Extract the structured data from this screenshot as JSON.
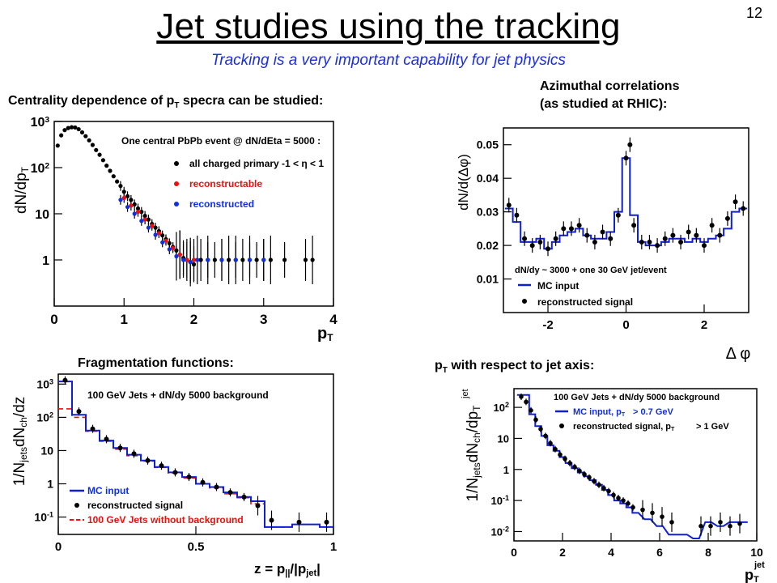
{
  "slide": {
    "title": "Jet studies using the tracking",
    "subtitle": "Tracking is a very important capability for jet physics",
    "page_number": "12"
  },
  "captions": {
    "centrality": "Centrality dependence of p",
    "centrality_sub": "T",
    "centrality_tail": " specra can be studied:",
    "azimuthal_line1": "Azimuthal correlations",
    "azimuthal_line2": "(as studied at RHIC):",
    "fragmentation": "Fragmentation functions:",
    "jet_axis": "p",
    "jet_axis_sub": "T",
    "jet_axis_tail": " with respect to jet axis:"
  },
  "chart_data": [
    {
      "id": "pt-spectra",
      "type": "scatter",
      "title": "",
      "ylabel": "dN/dp",
      "ylabel_sub": "T",
      "xlabel": "p",
      "xlabel_sub": "T",
      "xlim": [
        0,
        4
      ],
      "ylim": [
        0.1,
        1000
      ],
      "y_scale": "log",
      "x_ticks": [
        "0",
        "1",
        "2",
        "3",
        "4"
      ],
      "y_ticks": [
        {
          "v": 1000,
          "base": "10",
          "exp": "3"
        },
        {
          "v": 100,
          "base": "10",
          "exp": "2"
        },
        {
          "v": 10,
          "base": "10",
          "exp": ""
        },
        {
          "v": 1,
          "base": "1",
          "exp": ""
        }
      ],
      "legend_header": "One central PbPb event @ dN/dEta = 5000 :",
      "legend_position": "top-right",
      "series": [
        {
          "name": "all charged primary -1 < η < 1",
          "color": "#000000",
          "x": [
            0.05,
            0.1,
            0.15,
            0.2,
            0.25,
            0.3,
            0.35,
            0.4,
            0.45,
            0.5,
            0.55,
            0.6,
            0.65,
            0.7,
            0.75,
            0.8,
            0.85,
            0.9,
            0.95,
            1.0,
            1.05,
            1.1,
            1.15,
            1.2,
            1.25,
            1.3,
            1.35,
            1.4,
            1.45,
            1.5,
            1.55,
            1.6,
            1.65,
            1.7,
            1.75,
            1.8,
            1.85,
            1.9,
            1.95,
            2.0,
            2.1,
            2.2,
            2.3,
            2.4,
            2.5,
            2.6,
            2.7,
            2.8,
            2.9,
            3.0,
            3.1,
            3.3,
            3.6,
            3.7
          ],
          "y": [
            300,
            500,
            650,
            720,
            750,
            740,
            680,
            580,
            480,
            390,
            310,
            240,
            190,
            145,
            110,
            85,
            65,
            50,
            40,
            30,
            24,
            20,
            16,
            13,
            11,
            9,
            7.5,
            6,
            5,
            4.2,
            3.4,
            2.8,
            2.3,
            1.9,
            1.6,
            1.3,
            1.1,
            1.0,
            0.9,
            0.8,
            1,
            1,
            1,
            1,
            1,
            1,
            1,
            1,
            1,
            1,
            1,
            1,
            1,
            1
          ]
        },
        {
          "name": "reconstructable",
          "color": "#e81010",
          "x": [
            1.0,
            1.1,
            1.2,
            1.3,
            1.4,
            1.5,
            1.6,
            1.7,
            1.8,
            1.9,
            2.0
          ],
          "y": [
            22,
            15,
            11,
            7.5,
            5.5,
            3.8,
            2.6,
            1.8,
            1.3,
            1.0,
            1.0
          ]
        },
        {
          "name": "reconstructed",
          "color": "#1030e0",
          "x": [
            0.95,
            1.05,
            1.15,
            1.25,
            1.35,
            1.45,
            1.55,
            1.65,
            1.75,
            1.85,
            1.95,
            2.05,
            2.2,
            2.4,
            2.6,
            2.8,
            3.0
          ],
          "y": [
            20,
            14,
            10,
            7,
            5,
            3.5,
            2.4,
            1.7,
            1.2,
            1.0,
            0.9,
            1,
            1,
            1,
            1,
            1,
            1
          ]
        }
      ]
    },
    {
      "id": "azimuthal",
      "type": "line",
      "title": "",
      "ylabel": "dN/d(Δφ)",
      "xlabel": "Δ φ",
      "xlim": [
        -3.14,
        3.14
      ],
      "ylim": [
        0,
        0.055
      ],
      "x_ticks": [
        "-2",
        "0",
        "2"
      ],
      "y_ticks": [
        "0.01",
        "0.02",
        "0.03",
        "0.04",
        "0.05"
      ],
      "legend_header": "dN/dy ~ 3000 + one 30 GeV jet/event",
      "legend_position": "bottom-left",
      "series": [
        {
          "name": "MC input",
          "color": "#1020d0",
          "x": [
            -3.0,
            -2.8,
            -2.6,
            -2.4,
            -2.2,
            -2.0,
            -1.8,
            -1.6,
            -1.4,
            -1.2,
            -1.0,
            -0.8,
            -0.6,
            -0.4,
            -0.2,
            0.0,
            0.2,
            0.4,
            0.6,
            0.8,
            1.0,
            1.2,
            1.4,
            1.6,
            1.8,
            2.0,
            2.2,
            2.4,
            2.6,
            2.8,
            3.0
          ],
          "y": [
            0.031,
            0.027,
            0.021,
            0.021,
            0.022,
            0.019,
            0.021,
            0.023,
            0.024,
            0.025,
            0.023,
            0.022,
            0.022,
            0.024,
            0.03,
            0.046,
            0.029,
            0.021,
            0.02,
            0.02,
            0.021,
            0.022,
            0.022,
            0.021,
            0.022,
            0.021,
            0.022,
            0.023,
            0.025,
            0.03,
            0.031
          ]
        },
        {
          "name": "reconstructed signal",
          "color": "#000000",
          "x": [
            -3.0,
            -2.8,
            -2.6,
            -2.4,
            -2.2,
            -2.0,
            -1.8,
            -1.6,
            -1.4,
            -1.2,
            -1.0,
            -0.8,
            -0.6,
            -0.4,
            -0.2,
            0.0,
            0.1,
            0.2,
            0.4,
            0.6,
            0.8,
            1.0,
            1.2,
            1.4,
            1.6,
            1.8,
            2.0,
            2.2,
            2.4,
            2.6,
            2.8,
            3.0
          ],
          "y": [
            0.032,
            0.029,
            0.022,
            0.02,
            0.021,
            0.019,
            0.022,
            0.025,
            0.025,
            0.026,
            0.023,
            0.021,
            0.024,
            0.022,
            0.029,
            0.046,
            0.05,
            0.026,
            0.021,
            0.021,
            0.02,
            0.022,
            0.023,
            0.021,
            0.024,
            0.023,
            0.02,
            0.026,
            0.023,
            0.028,
            0.033,
            0.031
          ]
        }
      ]
    },
    {
      "id": "fragmentation",
      "type": "line",
      "title": "",
      "ylabel": "1/N",
      "ylabel_parts": [
        "1/N",
        "jets",
        "dN",
        "ch",
        "/dz"
      ],
      "xlabel": "z = p",
      "xlabel_parts": [
        "z = p",
        "||",
        "/|p",
        "jet",
        "|"
      ],
      "xlim": [
        0,
        1
      ],
      "ylim": [
        0.03,
        2000
      ],
      "y_scale": "log",
      "x_ticks": [
        "0",
        "0.5",
        "1"
      ],
      "y_ticks": [
        {
          "v": 1000,
          "base": "10",
          "exp": "3"
        },
        {
          "v": 100,
          "base": "10",
          "exp": "2"
        },
        {
          "v": 10,
          "base": "10",
          "exp": ""
        },
        {
          "v": 1,
          "base": "1",
          "exp": ""
        },
        {
          "v": 0.1,
          "base": "10",
          "exp": "-1"
        }
      ],
      "legend_header": "100 GeV Jets + dN/dy 5000 background",
      "legend_position": "bottom-left",
      "series": [
        {
          "name": "MC input",
          "color": "#1020d0",
          "x": [
            0.025,
            0.075,
            0.125,
            0.175,
            0.225,
            0.275,
            0.325,
            0.375,
            0.425,
            0.475,
            0.525,
            0.575,
            0.625,
            0.675,
            0.725,
            0.775,
            0.825,
            0.875,
            0.925,
            0.975
          ],
          "y": [
            1200,
            120,
            40,
            20,
            12,
            7.5,
            5,
            3.2,
            2.2,
            1.6,
            1.0,
            0.8,
            0.55,
            0.4,
            0.3,
            0.05,
            0.05,
            0.06,
            0.06,
            0.05
          ]
        },
        {
          "name": "reconstructed signal",
          "color": "#000000",
          "x": [
            0.025,
            0.075,
            0.125,
            0.175,
            0.225,
            0.275,
            0.325,
            0.375,
            0.425,
            0.475,
            0.525,
            0.575,
            0.625,
            0.675,
            0.725,
            0.775,
            0.875,
            0.975
          ],
          "y": [
            1300,
            150,
            45,
            22,
            12,
            8,
            5,
            3.5,
            2.2,
            1.6,
            1.1,
            0.8,
            0.55,
            0.4,
            0.22,
            0.08,
            0.07,
            0.07
          ]
        },
        {
          "name": "100 GeV Jets without background",
          "color": "#e81010",
          "dashed": true,
          "x": [
            0.025,
            0.075,
            0.125,
            0.175,
            0.225,
            0.275,
            0.325,
            0.375,
            0.425,
            0.475,
            0.525,
            0.575,
            0.625,
            0.675,
            0.725,
            0.775,
            0.825
          ],
          "y": [
            180,
            100,
            38,
            19,
            11,
            7,
            4.8,
            3.1,
            2.1,
            1.5,
            1.0,
            0.75,
            0.5,
            0.38,
            0.25,
            0.05,
            0.05
          ]
        }
      ]
    },
    {
      "id": "jet-axis",
      "type": "line",
      "title": "",
      "ylabel_parts": [
        "1/N",
        "jets",
        "dN",
        "ch",
        "/dp",
        "T",
        "jet"
      ],
      "ylabel": "1/N",
      "xlabel": "p",
      "xlabel_parts": [
        "p",
        "T",
        "jet"
      ],
      "xlim": [
        0,
        10
      ],
      "ylim": [
        0.005,
        400
      ],
      "y_scale": "log",
      "x_ticks": [
        "0",
        "2",
        "4",
        "6",
        "8",
        "10"
      ],
      "y_ticks": [
        {
          "v": 100,
          "base": "10",
          "exp": "2"
        },
        {
          "v": 10,
          "base": "10",
          "exp": ""
        },
        {
          "v": 1,
          "base": "1",
          "exp": ""
        },
        {
          "v": 0.1,
          "base": "10",
          "exp": "-1"
        },
        {
          "v": 0.01,
          "base": "10",
          "exp": "-2"
        }
      ],
      "legend_header": "100 GeV Jets + dN/dy 5000 background",
      "legend_position": "top-right",
      "series": [
        {
          "name": "MC input, p",
          "legend_tail": " > 0.7 GeV",
          "color": "#1020d0",
          "x": [
            0.25,
            0.5,
            0.75,
            1.0,
            1.25,
            1.5,
            1.75,
            2.0,
            2.25,
            2.5,
            2.75,
            3.0,
            3.25,
            3.5,
            3.75,
            4.0,
            4.25,
            4.5,
            4.75,
            5.0,
            5.5,
            6.0,
            6.5,
            7.0,
            7.5,
            8.0,
            8.5,
            9.0,
            9.5
          ],
          "y": [
            250,
            250,
            60,
            25,
            12,
            6,
            4,
            2.5,
            1.6,
            1.1,
            0.8,
            0.6,
            0.45,
            0.32,
            0.22,
            0.15,
            0.1,
            0.08,
            0.06,
            0.04,
            0.025,
            0.015,
            0.008,
            0.008,
            0.006,
            0.02,
            0.015,
            0.02,
            0.02
          ]
        },
        {
          "name": "reconstructed signal, p",
          "legend_tail": " > 1 GeV",
          "color": "#000000",
          "x": [
            0.3,
            0.5,
            0.7,
            0.9,
            1.1,
            1.3,
            1.5,
            1.7,
            1.9,
            2.1,
            2.3,
            2.5,
            2.7,
            2.9,
            3.1,
            3.3,
            3.5,
            3.7,
            3.9,
            4.1,
            4.3,
            4.5,
            4.7,
            4.9,
            5.3,
            5.7,
            6.1,
            6.5,
            7.7,
            8.1,
            8.5,
            8.9,
            9.3
          ],
          "y": [
            220,
            150,
            80,
            40,
            20,
            12,
            7,
            4.5,
            3,
            2.2,
            1.6,
            1.2,
            0.9,
            0.7,
            0.55,
            0.42,
            0.32,
            0.25,
            0.2,
            0.15,
            0.12,
            0.1,
            0.08,
            0.06,
            0.05,
            0.04,
            0.03,
            0.02,
            0.015,
            0.015,
            0.02,
            0.015,
            0.018
          ]
        }
      ]
    }
  ]
}
